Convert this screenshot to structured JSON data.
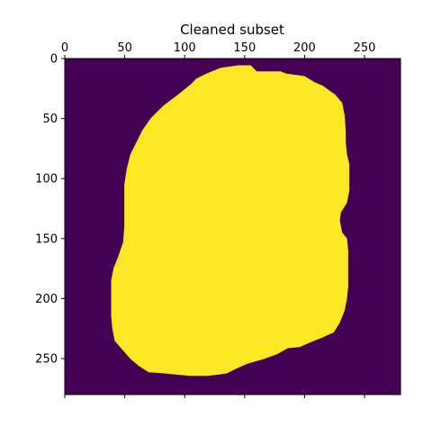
{
  "chart_data": {
    "type": "heatmap",
    "title": "Cleaned subset",
    "xlabel": "",
    "ylabel": "",
    "image_width": 280,
    "image_height": 280,
    "xlim": [
      0,
      280
    ],
    "ylim": [
      280,
      0
    ],
    "x_ticks": [
      0,
      50,
      100,
      150,
      200,
      250
    ],
    "x_tick_labels": [
      "0",
      "50",
      "100",
      "150",
      "200",
      "250"
    ],
    "y_ticks": [
      0,
      50,
      100,
      150,
      200,
      250
    ],
    "y_tick_labels": [
      "0",
      "50",
      "100",
      "150",
      "200",
      "250"
    ],
    "x_axis_labels_position": "top",
    "colormap": "viridis",
    "values": [
      0,
      1
    ],
    "colors": {
      "background_value_0": "#440154",
      "mask_value_1": "#fde725"
    },
    "mask_outline": [
      [
        145,
        6
      ],
      [
        155,
        6
      ],
      [
        160,
        11
      ],
      [
        180,
        11
      ],
      [
        185,
        13
      ],
      [
        200,
        15
      ],
      [
        208,
        20
      ],
      [
        215,
        23
      ],
      [
        225,
        30
      ],
      [
        231,
        37
      ],
      [
        233,
        47
      ],
      [
        234,
        60
      ],
      [
        234,
        70
      ],
      [
        235,
        80
      ],
      [
        237,
        88
      ],
      [
        237,
        100
      ],
      [
        237,
        110
      ],
      [
        235,
        120
      ],
      [
        230,
        128
      ],
      [
        229,
        135
      ],
      [
        231,
        145
      ],
      [
        235,
        150
      ],
      [
        236,
        160
      ],
      [
        236,
        175
      ],
      [
        236,
        190
      ],
      [
        235,
        200
      ],
      [
        233,
        210
      ],
      [
        229,
        220
      ],
      [
        224,
        228
      ],
      [
        215,
        232
      ],
      [
        205,
        236
      ],
      [
        196,
        240
      ],
      [
        186,
        241
      ],
      [
        177,
        246
      ],
      [
        166,
        250
      ],
      [
        152,
        254
      ],
      [
        143,
        258
      ],
      [
        135,
        262
      ],
      [
        128,
        263
      ],
      [
        119,
        264
      ],
      [
        105,
        264
      ],
      [
        93,
        263
      ],
      [
        83,
        262
      ],
      [
        70,
        261
      ],
      [
        62,
        256
      ],
      [
        55,
        250
      ],
      [
        48,
        242
      ],
      [
        42,
        235
      ],
      [
        40,
        225
      ],
      [
        39,
        215
      ],
      [
        39,
        200
      ],
      [
        39,
        185
      ],
      [
        41,
        175
      ],
      [
        45,
        165
      ],
      [
        49,
        153
      ],
      [
        50,
        140
      ],
      [
        50,
        120
      ],
      [
        50,
        105
      ],
      [
        52,
        92
      ],
      [
        55,
        80
      ],
      [
        60,
        70
      ],
      [
        65,
        60
      ],
      [
        72,
        50
      ],
      [
        82,
        40
      ],
      [
        95,
        30
      ],
      [
        105,
        22
      ],
      [
        110,
        17
      ],
      [
        118,
        13
      ],
      [
        130,
        8
      ]
    ]
  }
}
